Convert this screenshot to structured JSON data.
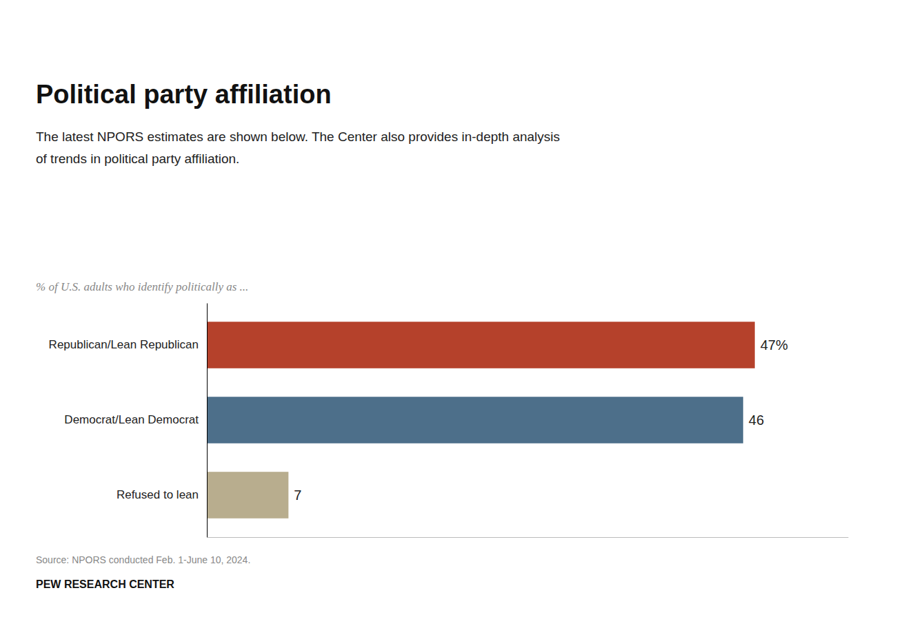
{
  "chart_data": {
    "type": "bar",
    "orientation": "horizontal",
    "title": "Political party affiliation",
    "subtitle": [
      "The latest NPORS estimates are shown below. The Center also provides in-depth analysis",
      "of trends in political party affiliation."
    ],
    "x_label": "% of U.S. adults who identify politically as ...",
    "categories": [
      "Republican/Lean Republican",
      "Democrat/Lean Democrat",
      "Refused to lean"
    ],
    "values": [
      47,
      46,
      7
    ],
    "value_labels": [
      "47%",
      "46",
      "7"
    ],
    "data_labels": true,
    "colors": [
      "#b5412b",
      "#4d6f8a",
      "#b8ad8e"
    ],
    "xlim": [
      0,
      55
    ],
    "tick_labels": "y",
    "grid": false,
    "source": "Source: NPORS conducted Feb. 1-June 10, 2024.",
    "footer": "PEW RESEARCH CENTER"
  }
}
